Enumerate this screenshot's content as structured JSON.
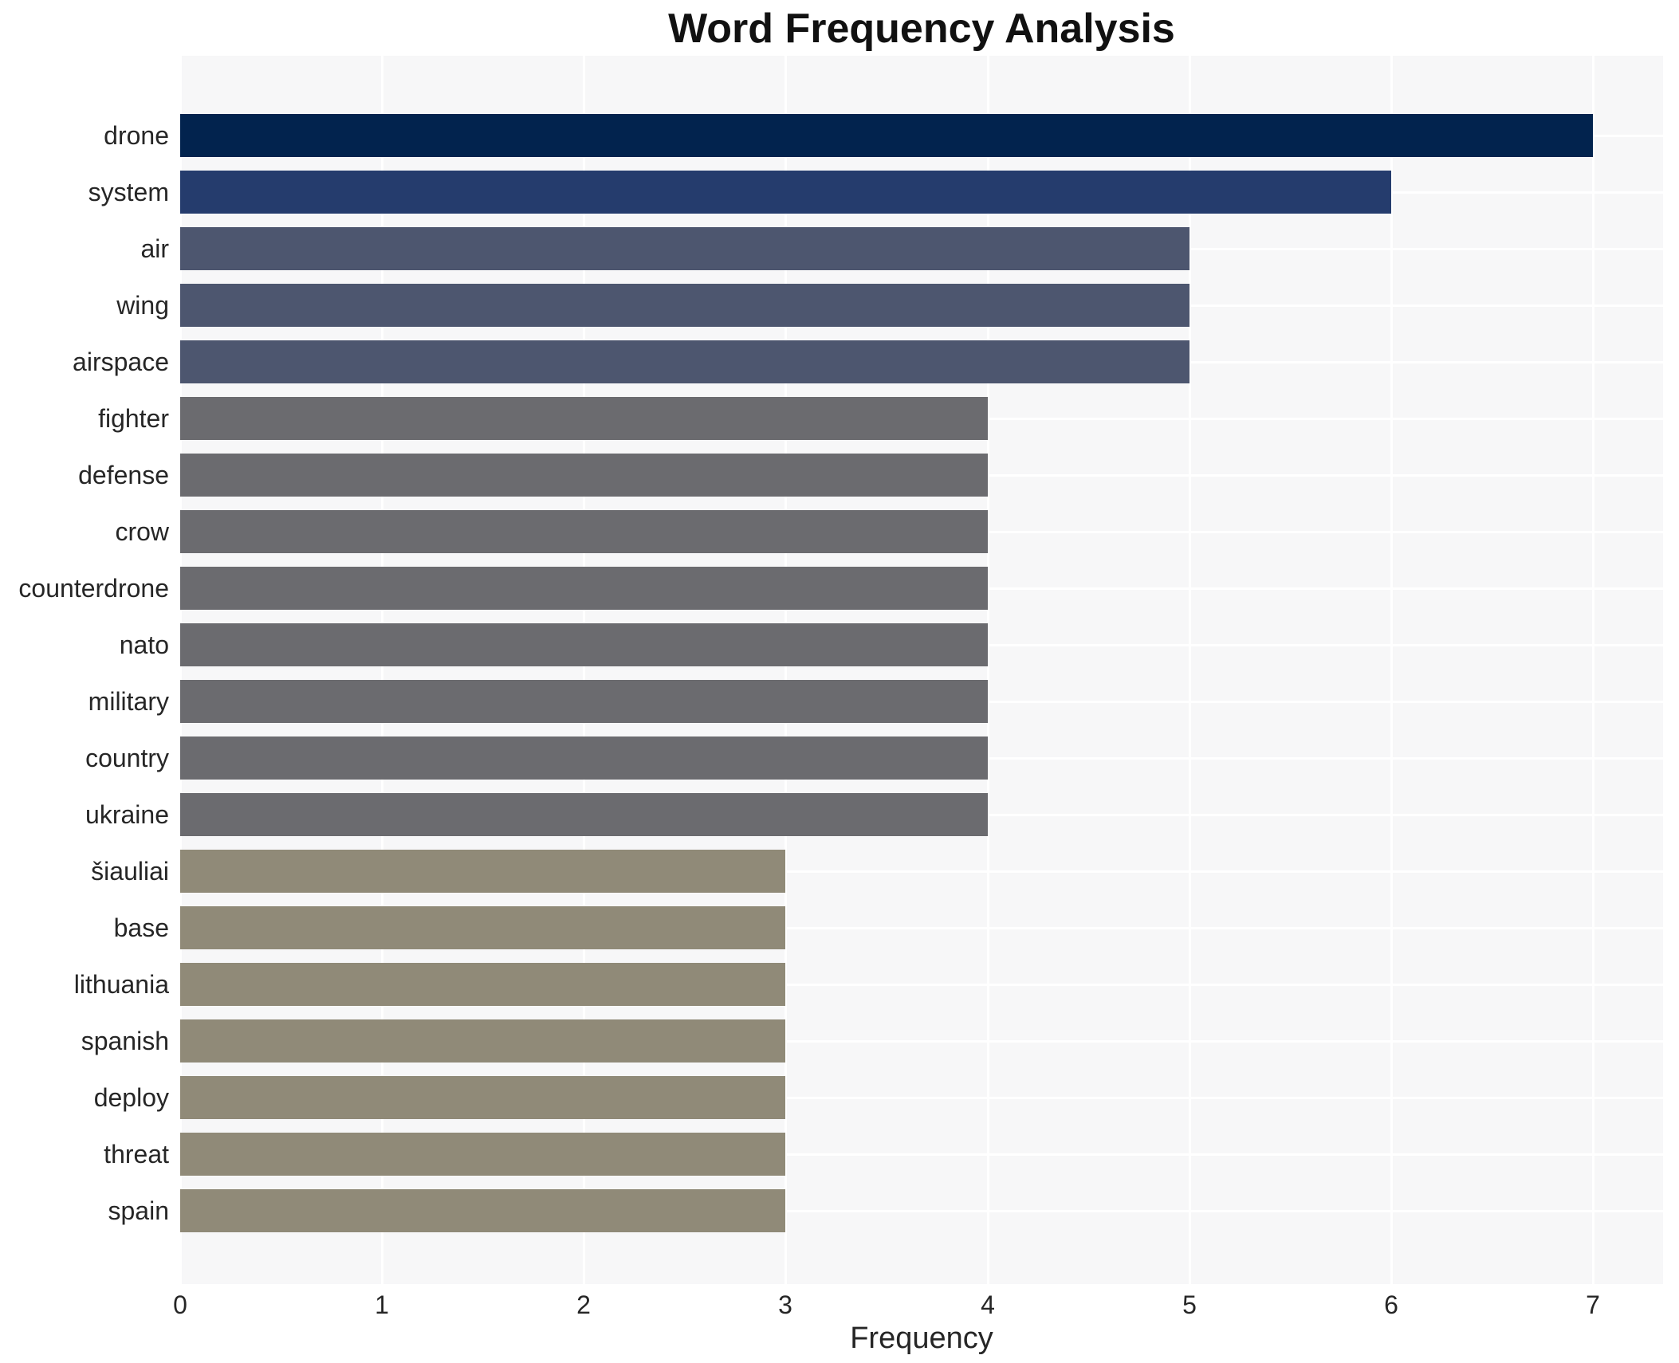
{
  "title": "Word Frequency Analysis",
  "chart_data": {
    "type": "bar",
    "orientation": "horizontal",
    "title": "Word Frequency Analysis",
    "xlabel": "Frequency",
    "ylabel": "",
    "xlim": [
      0,
      7.35
    ],
    "xticks": [
      "0",
      "1",
      "2",
      "3",
      "4",
      "5",
      "6",
      "7"
    ],
    "grid": "on",
    "legend": "none",
    "categories": [
      "drone",
      "system",
      "air",
      "wing",
      "airspace",
      "fighter",
      "defense",
      "crow",
      "counterdrone",
      "nato",
      "military",
      "country",
      "ukraine",
      "šiauliai",
      "base",
      "lithuania",
      "spanish",
      "deploy",
      "threat",
      "spain"
    ],
    "values": [
      7,
      6,
      5,
      5,
      5,
      4,
      4,
      4,
      4,
      4,
      4,
      4,
      4,
      3,
      3,
      3,
      3,
      3,
      3,
      3
    ],
    "bar_colors": [
      "#02234e",
      "#253c6d",
      "#4d566f",
      "#4d566f",
      "#4d566f",
      "#6b6b6f",
      "#6b6b6f",
      "#6b6b6f",
      "#6b6b6f",
      "#6b6b6f",
      "#6b6b6f",
      "#6b6b6f",
      "#6b6b6f",
      "#908a78",
      "#908a78",
      "#908a78",
      "#908a78",
      "#908a78",
      "#908a78",
      "#908a78"
    ]
  },
  "colors": {
    "page_bg": "#ffffff",
    "plot_bg": "#f7f7f8",
    "grid": "#ffffff",
    "label_text": "#262626",
    "title_text": "#111111"
  }
}
